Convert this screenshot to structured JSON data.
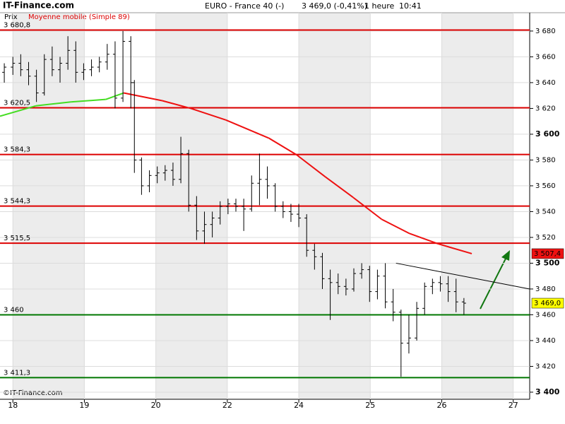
{
  "chart_data": {
    "type": "ohlc",
    "brand": "IT-Finance.com",
    "instrument": "EURO - France 40 (-)",
    "quote": "3 469,0 (-0,41%)",
    "interval": "1 heure",
    "time": "10:41",
    "price_label": "Prix",
    "copyright": "©IT-Finance.com",
    "xlim": [
      -0.18,
      7.23
    ],
    "ylim": [
      3394.5,
      3694.2
    ],
    "xticks": [
      {
        "value": 0,
        "label": "18"
      },
      {
        "value": 1,
        "label": "19"
      },
      {
        "value": 2,
        "label": "20"
      },
      {
        "value": 3,
        "label": "22"
      },
      {
        "value": 4,
        "label": "24"
      },
      {
        "value": 5,
        "label": "25"
      },
      {
        "value": 6,
        "label": "26"
      },
      {
        "value": 7,
        "label": "27"
      }
    ],
    "yticks": [
      {
        "value": 3400,
        "label": "3 400"
      },
      {
        "value": 3420,
        "label": "3 420"
      },
      {
        "value": 3440,
        "label": "3 440"
      },
      {
        "value": 3460,
        "label": "3 460"
      },
      {
        "value": 3480,
        "label": "3 480"
      },
      {
        "value": 3500,
        "label": "3 500"
      },
      {
        "value": 3520,
        "label": "3 520"
      },
      {
        "value": 3540,
        "label": "3 540"
      },
      {
        "value": 3560,
        "label": "3 560"
      },
      {
        "value": 3580,
        "label": "3 580"
      },
      {
        "value": 3600,
        "label": "3 600"
      },
      {
        "value": 3620,
        "label": "3 620"
      },
      {
        "value": 3640,
        "label": "3 640"
      },
      {
        "value": 3660,
        "label": "3 660"
      },
      {
        "value": 3680,
        "label": "3 680"
      }
    ],
    "bar_color": "#000000",
    "bars": {
      "x": [
        -0.12,
        0.0,
        0.11,
        0.22,
        0.33,
        0.44,
        0.55,
        0.66,
        0.77,
        0.88,
        0.99,
        1.1,
        1.21,
        1.32,
        1.43,
        1.54,
        1.65,
        1.7,
        1.8,
        1.91,
        2.02,
        2.13,
        2.24,
        2.35,
        2.46,
        2.57,
        2.68,
        2.79,
        2.9,
        3.01,
        3.12,
        3.23,
        3.34,
        3.45,
        3.56,
        3.67,
        3.78,
        3.89,
        4.0,
        4.11,
        4.22,
        4.33,
        4.44,
        4.55,
        4.66,
        4.77,
        4.88,
        4.99,
        5.1,
        5.21,
        5.32,
        5.43,
        5.54,
        5.65,
        5.76,
        5.87,
        5.98,
        6.09,
        6.2,
        6.31
      ],
      "open": [
        3648,
        3652,
        3655,
        3650,
        3645,
        3632,
        3658,
        3650,
        3655,
        3665,
        3648,
        3650,
        3652,
        3656,
        3662,
        3628,
        3672,
        3640,
        3580,
        3560,
        3568,
        3570,
        3572,
        3565,
        3585,
        3545,
        3525,
        3530,
        3535,
        3544,
        3546,
        3544,
        3542,
        3562,
        3565,
        3560,
        3544,
        3540,
        3538,
        3535,
        3510,
        3505,
        3488,
        3485,
        3482,
        3480,
        3492,
        3495,
        3478,
        3490,
        3470,
        3462,
        3438,
        3442,
        3465,
        3482,
        3485,
        3484,
        3478,
        3470
      ],
      "high": [
        3655,
        3660,
        3662,
        3656,
        3650,
        3662,
        3668,
        3660,
        3676,
        3672,
        3655,
        3658,
        3660,
        3670,
        3672,
        3680,
        3676,
        3642,
        3582,
        3572,
        3575,
        3576,
        3578,
        3598,
        3588,
        3552,
        3540,
        3540,
        3548,
        3550,
        3550,
        3550,
        3568,
        3585,
        3575,
        3562,
        3548,
        3546,
        3546,
        3538,
        3515,
        3508,
        3495,
        3492,
        3488,
        3496,
        3500,
        3498,
        3495,
        3500,
        3480,
        3464,
        3460,
        3470,
        3485,
        3488,
        3490,
        3490,
        3488,
        3473
      ],
      "low": [
        3640,
        3646,
        3645,
        3638,
        3625,
        3630,
        3645,
        3640,
        3650,
        3640,
        3642,
        3645,
        3648,
        3650,
        3620,
        3625,
        3620,
        3570,
        3553,
        3555,
        3562,
        3564,
        3560,
        3562,
        3540,
        3518,
        3515,
        3520,
        3530,
        3538,
        3540,
        3525,
        3540,
        3545,
        3550,
        3540,
        3535,
        3532,
        3528,
        3505,
        3495,
        3480,
        3456,
        3476,
        3475,
        3478,
        3488,
        3470,
        3472,
        3465,
        3455,
        3412,
        3430,
        3440,
        3460,
        3476,
        3478,
        3470,
        3462,
        3460
      ],
      "close": [
        3652,
        3655,
        3650,
        3645,
        3632,
        3658,
        3650,
        3655,
        3665,
        3648,
        3650,
        3652,
        3656,
        3662,
        3628,
        3672,
        3640,
        3580,
        3560,
        3568,
        3570,
        3572,
        3565,
        3585,
        3545,
        3525,
        3530,
        3535,
        3544,
        3546,
        3544,
        3542,
        3562,
        3565,
        3560,
        3544,
        3540,
        3538,
        3535,
        3510,
        3505,
        3488,
        3485,
        3482,
        3480,
        3492,
        3495,
        3478,
        3490,
        3470,
        3462,
        3438,
        3442,
        3465,
        3482,
        3485,
        3484,
        3478,
        3470,
        3469
      ]
    },
    "moving_average": {
      "name": "Moyenne mobile (Simple 89)",
      "x": [
        -0.18,
        0.32,
        0.81,
        1.3,
        1.55,
        2.09,
        2.49,
        2.98,
        3.58,
        3.97,
        4.37,
        4.76,
        5.16,
        5.55,
        5.95,
        6.42
      ],
      "values": [
        3614,
        3622,
        3625,
        3627,
        3632,
        3626,
        3620,
        3611,
        3597,
        3584,
        3567,
        3551,
        3534,
        3523,
        3515,
        3507.4
      ],
      "colors": [
        "#44dd22",
        "#44dd22",
        "#44dd22",
        "#44dd22",
        "#44dd22",
        "#ee1111",
        "#ee1111",
        "#ee1111",
        "#ee1111",
        "#ee1111",
        "#ee1111",
        "#ee1111",
        "#ee1111",
        "#ee1111",
        "#ee1111",
        "#ee1111"
      ]
    },
    "levels": [
      {
        "value": 3680.8,
        "label": "3 680,8",
        "color": "#dd0000"
      },
      {
        "value": 3620.5,
        "label": "3 620,5",
        "color": "#dd0000"
      },
      {
        "value": 3584.3,
        "label": "3 584,3",
        "color": "#dd0000"
      },
      {
        "value": 3544.3,
        "label": "3 544,3",
        "color": "#dd0000"
      },
      {
        "value": 3515.5,
        "label": "3 515,5",
        "color": "#dd0000"
      },
      {
        "value": 3460,
        "label": "3 460",
        "color": "#007700"
      },
      {
        "value": 3411.3,
        "label": "3 411,3",
        "color": "#007700"
      }
    ],
    "trendline": {
      "x": [
        5.36,
        7.23
      ],
      "values": [
        3500,
        3480
      ],
      "color": "#000000"
    },
    "last_labels": [
      {
        "value": 3507.4,
        "label": "3 507,4",
        "color": "#ee1111"
      },
      {
        "value": 3469.0,
        "label": "3 469,0",
        "color": "#ffff00"
      }
    ]
  }
}
